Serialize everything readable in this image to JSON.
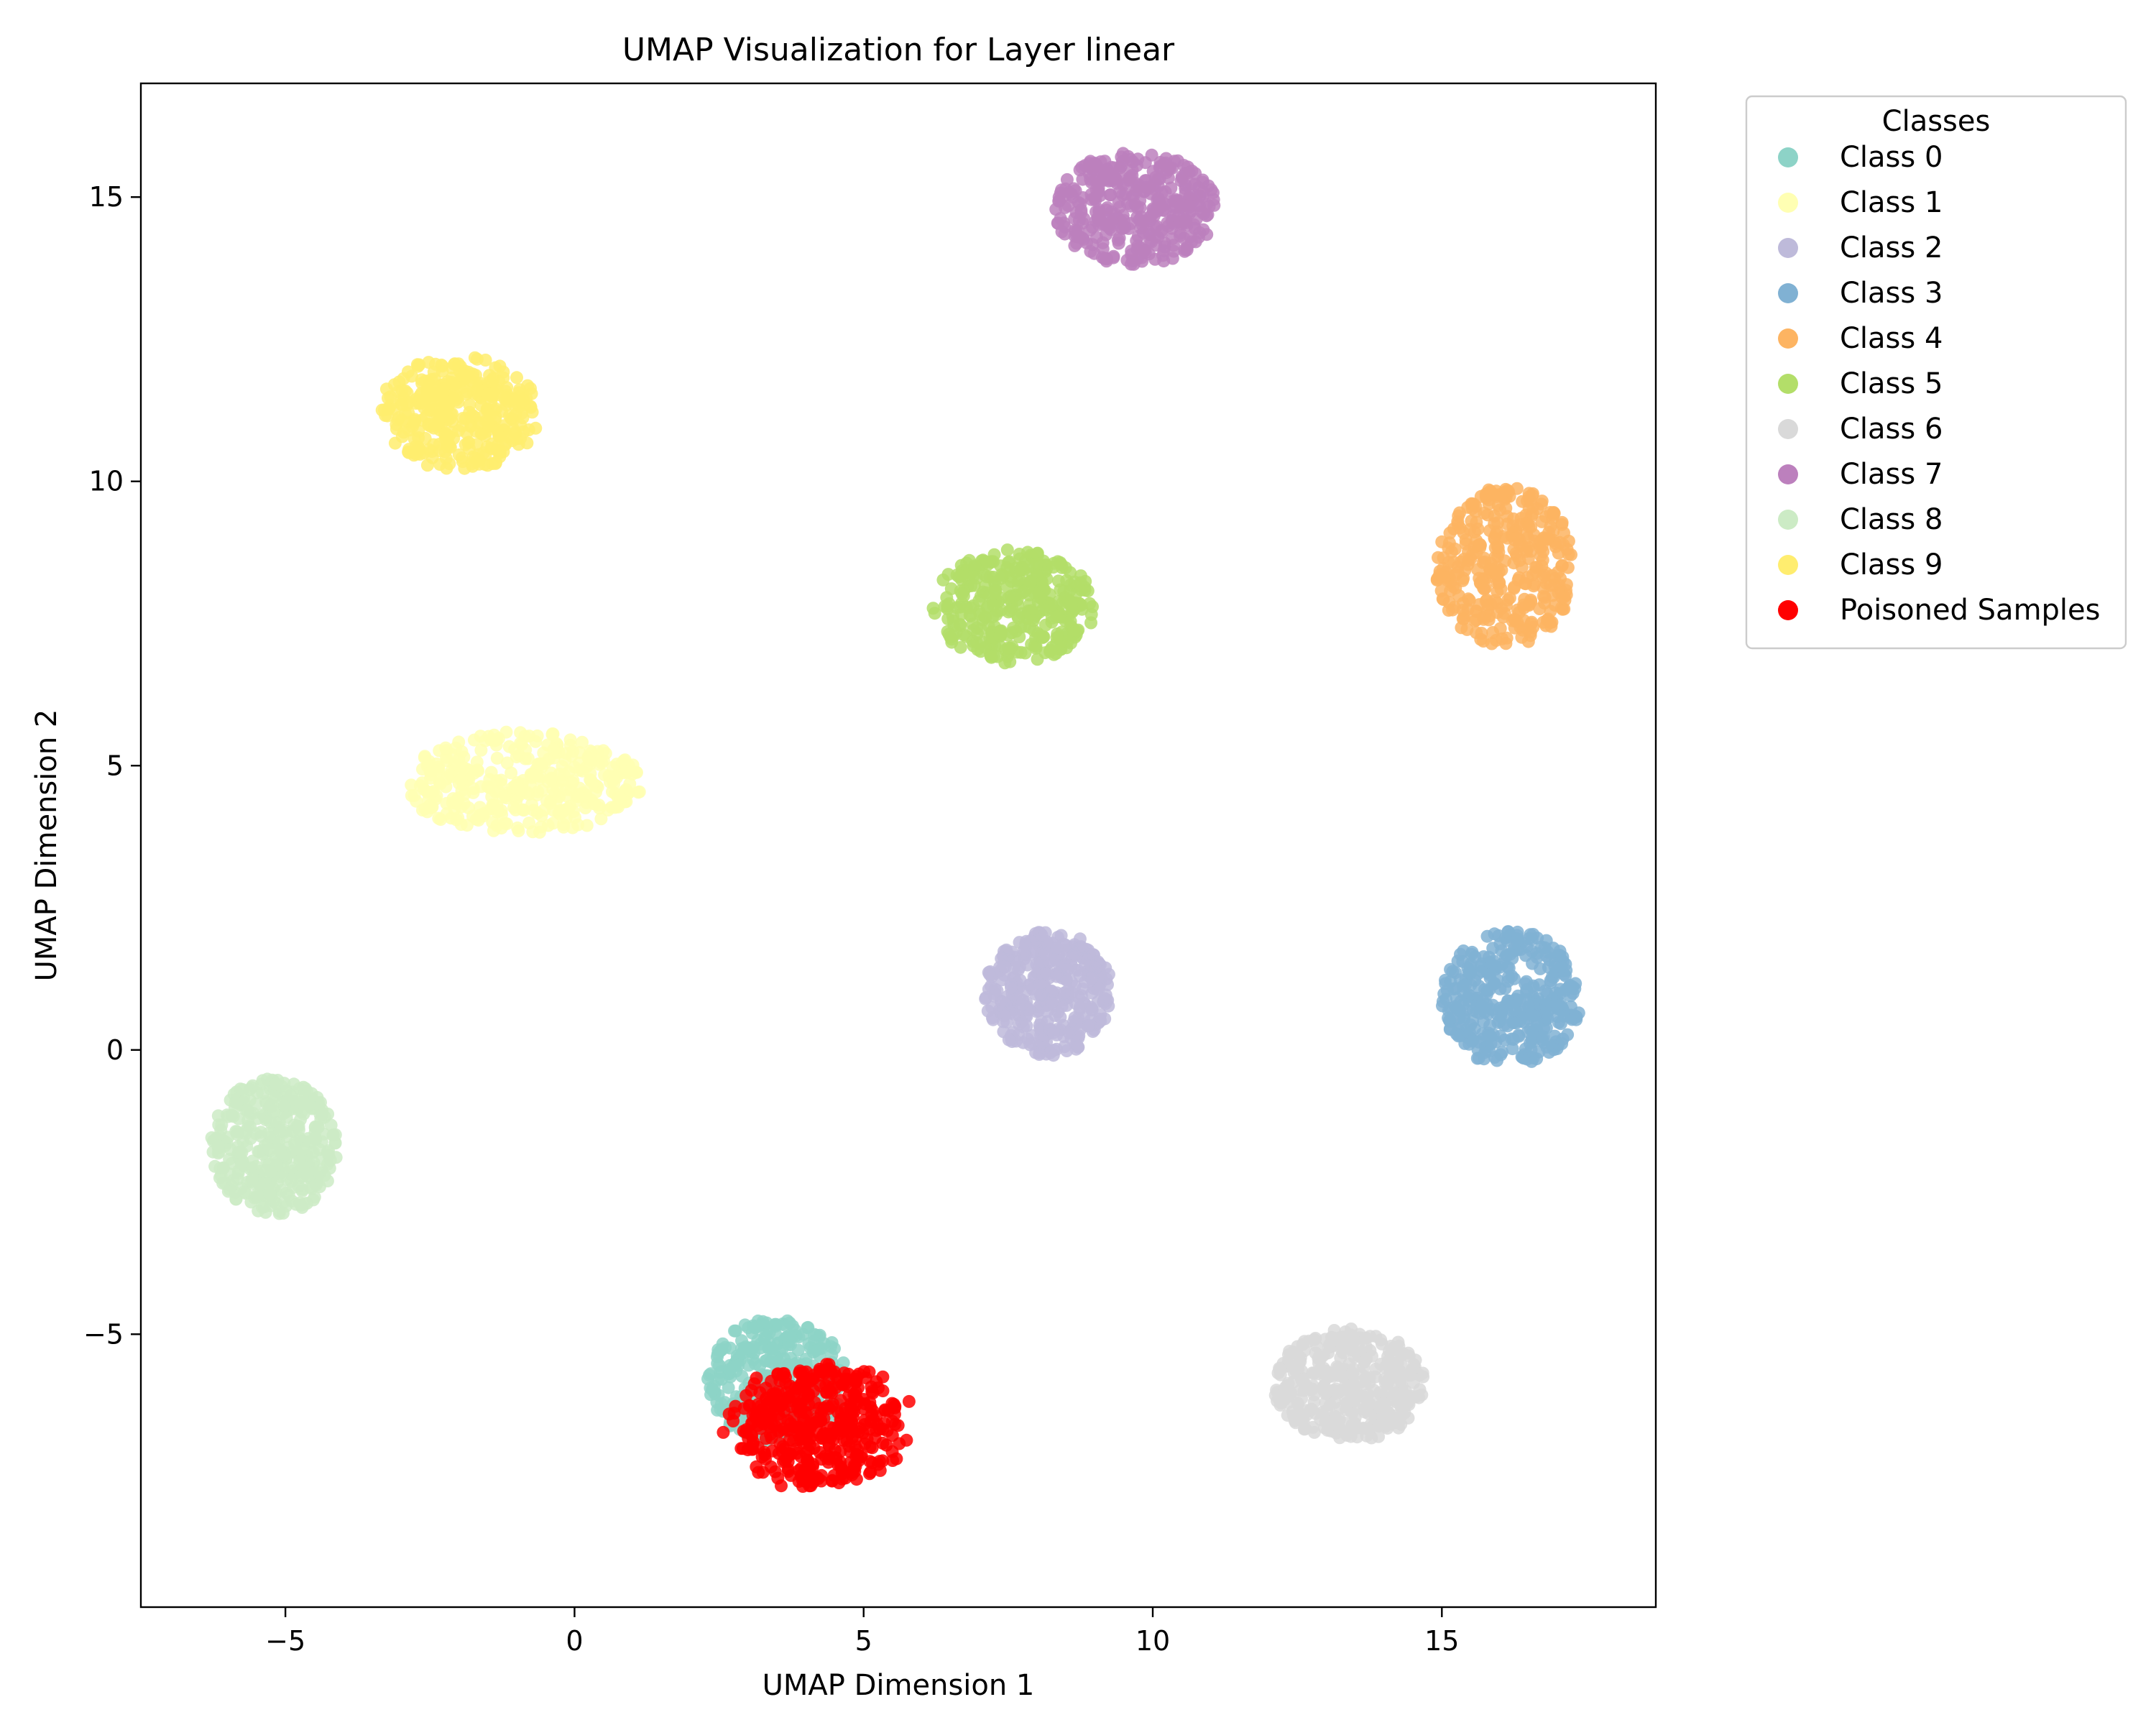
{
  "chart_data": {
    "type": "scatter",
    "title": "UMAP Visualization for Layer linear",
    "xlabel": "UMAP Dimension 1",
    "ylabel": "UMAP Dimension 2",
    "xlim": [
      -7.5,
      18.7
    ],
    "ylim": [
      -9.8,
      17.0
    ],
    "x_ticks": [
      -5,
      0,
      5,
      10,
      15
    ],
    "y_ticks": [
      -5,
      0,
      5,
      10,
      15
    ],
    "x_tick_labels": [
      "−5",
      "0",
      "5",
      "10",
      "15"
    ],
    "y_tick_labels": [
      "−5",
      "0",
      "5",
      "10",
      "15"
    ],
    "grid": false,
    "legend": {
      "title": "Classes",
      "placement": "outside upper right"
    },
    "series": [
      {
        "name": "Class 0",
        "color": "#8dd3c7",
        "center": [
          3.5,
          -5.8
        ],
        "spread": [
          1.2,
          1.1
        ]
      },
      {
        "name": "Class 1",
        "color": "#ffffb3",
        "center": [
          -0.9,
          4.7
        ],
        "spread": [
          2.1,
          0.9
        ]
      },
      {
        "name": "Class 2",
        "color": "#bebada",
        "center": [
          8.2,
          1.0
        ],
        "spread": [
          1.1,
          1.1
        ]
      },
      {
        "name": "Class 3",
        "color": "#80b1d3",
        "center": [
          16.2,
          0.9
        ],
        "spread": [
          1.2,
          1.2
        ]
      },
      {
        "name": "Class 4",
        "color": "#fdb462",
        "center": [
          16.1,
          8.5
        ],
        "spread": [
          1.2,
          1.4
        ]
      },
      {
        "name": "Class 5",
        "color": "#b3de69",
        "center": [
          7.6,
          7.8
        ],
        "spread": [
          1.4,
          1.0
        ]
      },
      {
        "name": "Class 6",
        "color": "#d9d9d9",
        "center": [
          13.4,
          -5.9
        ],
        "spread": [
          1.3,
          1.0
        ]
      },
      {
        "name": "Class 7",
        "color": "#bc80bd",
        "center": [
          9.7,
          14.8
        ],
        "spread": [
          1.4,
          1.0
        ]
      },
      {
        "name": "Class 8",
        "color": "#ccebc5",
        "center": [
          -5.2,
          -1.7
        ],
        "spread": [
          1.1,
          1.2
        ]
      },
      {
        "name": "Class 9",
        "color": "#ffed6f",
        "center": [
          -2.0,
          11.2
        ],
        "spread": [
          1.4,
          1.0
        ]
      },
      {
        "name": "Poisoned Samples",
        "color": "#ff0000",
        "center": [
          4.0,
          -6.5
        ],
        "spread": [
          2.3,
          2.2
        ]
      }
    ]
  }
}
